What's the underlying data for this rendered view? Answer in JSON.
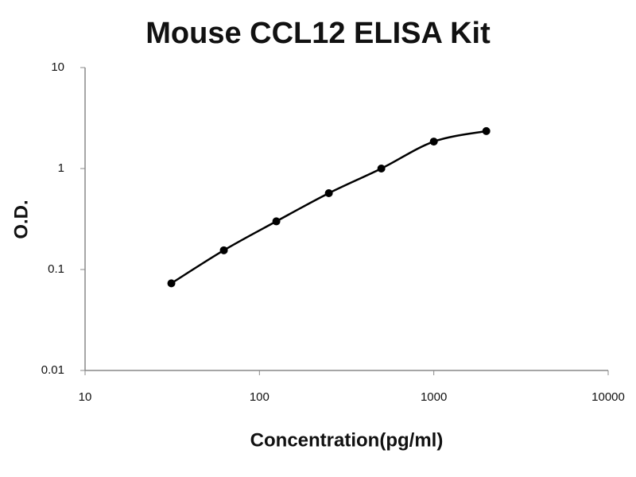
{
  "chart_data": {
    "type": "scatter",
    "title": "Mouse CCL12 ELISA Kit",
    "xlabel": "Concentration(pg/ml)",
    "ylabel": "O.D.",
    "xscale": "log",
    "yscale": "log",
    "x": [
      31.25,
      62.5,
      125,
      250,
      500,
      1000,
      2000
    ],
    "series": [
      {
        "color": "#000000",
        "values": [
          0.073,
          0.155,
          0.3,
          0.57,
          1.0,
          1.85,
          2.35
        ]
      }
    ],
    "xlim": [
      10,
      10000
    ],
    "xticks": [
      10,
      100,
      1000,
      10000
    ],
    "ylim": [
      0.01,
      10
    ],
    "yticks": [
      0.01,
      0.1,
      1,
      10
    ]
  }
}
